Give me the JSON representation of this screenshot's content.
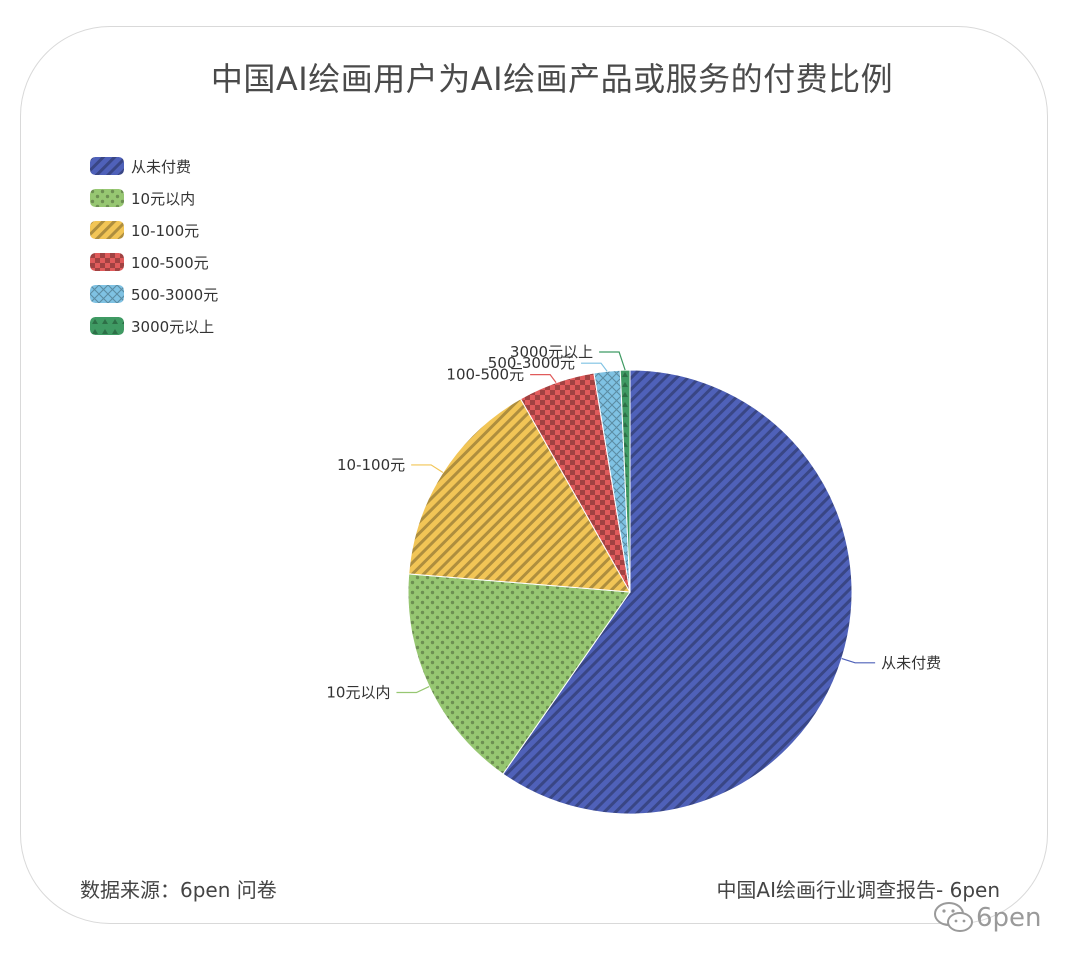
{
  "title": "中国AI绘画用户为AI绘画产品或服务的付费比例",
  "footer": {
    "source": "数据来源：6pen 问卷",
    "report": "中国AI绘画行业调查报告- 6pen"
  },
  "watermark": {
    "text": "6pen",
    "icon": "wechat-icon"
  },
  "colors": {
    "从未付费": "#4f61b9",
    "10元以内": "#97c772",
    "10-100元": "#f2c556",
    "100-500元": "#e05b5b",
    "500-3000元": "#7fc2e3",
    "3000元以上": "#3f9a63"
  },
  "chart_data": {
    "type": "pie",
    "categories": [
      "从未付费",
      "10元以内",
      "10-100元",
      "100-500元",
      "500-3000元",
      "3000元以上"
    ],
    "values": [
      59.7,
      16.6,
      15.5,
      5.6,
      1.9,
      0.7
    ],
    "legend": {
      "placement": "top-left",
      "entries": [
        "从未付费",
        "10元以内",
        "10-100元",
        "100-500元",
        "500-3000元",
        "3000元以上"
      ]
    },
    "slice_labels": [
      "从未付费",
      "10元以内",
      "10-100元",
      "100-500元",
      "500-3000元",
      "3000元以上"
    ],
    "patterns": [
      "diagonal-stripes",
      "dots",
      "diagonal-stripes",
      "checkerboard",
      "crosshatch",
      "triangles"
    ]
  }
}
